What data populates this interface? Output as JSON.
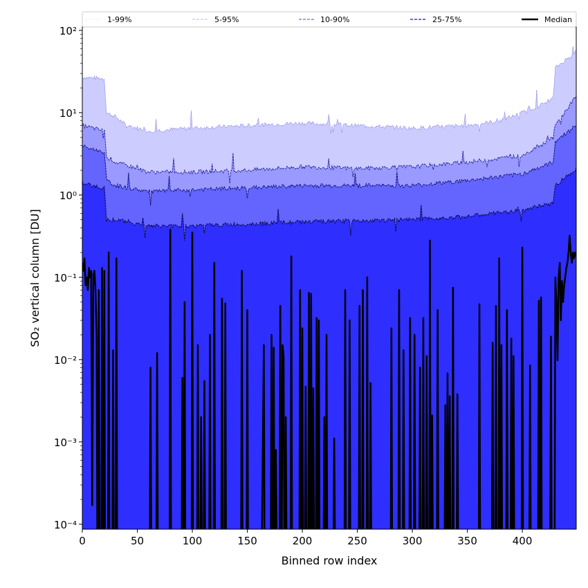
{
  "chart_data": {
    "type": "area",
    "xlabel": "Binned row index",
    "ylabel": "SO₂ vertical column [DU]",
    "xlim": [
      0,
      449
    ],
    "ylim": [
      8.7e-05,
      110
    ],
    "yscale": "log",
    "x_ticks": [
      0,
      50,
      100,
      150,
      200,
      250,
      300,
      350,
      400
    ],
    "y_ticks": [
      {
        "value": 0.0001,
        "label": "10⁻⁴"
      },
      {
        "value": 0.001,
        "label": "10⁻³"
      },
      {
        "value": 0.01,
        "label": "10⁻²"
      },
      {
        "value": 0.1,
        "label": "10⁻¹"
      },
      {
        "value": 1,
        "label": "10⁰"
      },
      {
        "value": 10,
        "label": "10¹"
      },
      {
        "value": 100,
        "label": "10²"
      }
    ],
    "legend_position": "top, spanning full width",
    "legend": [
      {
        "label": "1-99%",
        "color": "#ccccff",
        "style": "dotted"
      },
      {
        "label": "5-95%",
        "color": "#9999ff",
        "style": "dashed"
      },
      {
        "label": "10-90%",
        "color": "#6666ff",
        "style": "dashed"
      },
      {
        "label": "25-75%",
        "color": "#3333ff",
        "style": "dashed"
      },
      {
        "label": "Median",
        "color": "#000000",
        "style": "solid"
      }
    ],
    "fills": {
      "p99": "#ccccff",
      "p95": "#9999ff",
      "p90": "#6464ff",
      "p75": "#2e2eff"
    },
    "series": [
      {
        "name": "p99",
        "x": [
          0,
          20,
          22,
          30,
          40,
          50,
          60,
          100,
          150,
          200,
          250,
          300,
          350,
          380,
          400,
          420,
          428,
          430,
          449
        ],
        "values": [
          27,
          26,
          10,
          9,
          7,
          6.5,
          6,
          6.5,
          7,
          7.5,
          7,
          6.5,
          7,
          8,
          10,
          13,
          15,
          35,
          55
        ]
      },
      {
        "name": "p95",
        "x": [
          0,
          20,
          22,
          30,
          50,
          60,
          100,
          150,
          200,
          250,
          300,
          350,
          400,
          428,
          430,
          449
        ],
        "values": [
          7,
          6,
          3,
          2.5,
          2.1,
          1.9,
          1.9,
          2.0,
          2.2,
          2.1,
          2.2,
          2.5,
          3,
          5,
          7,
          16
        ]
      },
      {
        "name": "p90",
        "x": [
          0,
          20,
          22,
          30,
          60,
          100,
          200,
          300,
          350,
          400,
          428,
          430,
          449
        ],
        "values": [
          3.9,
          3.3,
          1.5,
          1.3,
          1.1,
          1.15,
          1.3,
          1.3,
          1.5,
          1.8,
          2.5,
          4.5,
          7
        ]
      },
      {
        "name": "p75",
        "x": [
          0,
          20,
          22,
          30,
          60,
          100,
          200,
          300,
          350,
          400,
          428,
          430,
          449
        ],
        "values": [
          1.4,
          1.2,
          0.5,
          0.5,
          0.42,
          0.42,
          0.47,
          0.5,
          0.55,
          0.65,
          0.8,
          1.3,
          2.1
        ]
      },
      {
        "name": "Median",
        "points": [
          [
            0,
            0.15
          ],
          [
            1,
            0.12
          ],
          [
            2,
            0.17
          ],
          [
            3,
            0.08
          ],
          [
            4,
            0.1
          ],
          [
            5,
            0.07
          ],
          [
            6,
            0.13
          ],
          [
            7,
            0.1
          ],
          [
            8,
            0.12
          ],
          [
            9,
            0.00017
          ],
          [
            10,
            0.11
          ],
          [
            11,
            0.12
          ],
          [
            12,
            0.07
          ],
          [
            13,
            0.02
          ],
          [
            15,
            0.07
          ],
          [
            18,
            0.13
          ],
          [
            20,
            0.12
          ],
          [
            24,
            0.2
          ],
          [
            28,
            0.013
          ],
          [
            31,
            0.17
          ],
          [
            62,
            0.008
          ],
          [
            68,
            0.012
          ],
          [
            80,
            0.38
          ],
          [
            91,
            0.006
          ],
          [
            93,
            0.05
          ],
          [
            100,
            0.35
          ],
          [
            105,
            0.015
          ],
          [
            108,
            0.002
          ],
          [
            111,
            0.0055
          ],
          [
            116,
            0.02
          ],
          [
            120,
            0.15
          ],
          [
            127,
            0.055
          ],
          [
            130,
            0.048
          ],
          [
            145,
            0.12
          ],
          [
            150,
            0.04
          ],
          [
            164,
            0.00065
          ],
          [
            165,
            0.015
          ],
          [
            172,
            0.02
          ],
          [
            174,
            0.014
          ],
          [
            176,
            0.0008
          ],
          [
            180,
            0.045
          ],
          [
            182,
            0.015
          ],
          [
            183,
            0.011
          ],
          [
            185,
            0.002
          ],
          [
            190,
            0.18
          ],
          [
            198,
            0.07
          ],
          [
            200,
            0.024
          ],
          [
            203,
            0.0047
          ],
          [
            206,
            0.065
          ],
          [
            208,
            0.063
          ],
          [
            210,
            0.0045
          ],
          [
            213,
            0.032
          ],
          [
            215,
            0.03
          ],
          [
            220,
            0.002
          ],
          [
            222,
            0.02
          ],
          [
            229,
            0.0011
          ],
          [
            239,
            0.07
          ],
          [
            243,
            0.03
          ],
          [
            252,
            0.045
          ],
          [
            255,
            0.07
          ],
          [
            259,
            0.1
          ],
          [
            262,
            0.0052
          ],
          [
            281,
            0.024
          ],
          [
            288,
            0.07
          ],
          [
            292,
            0.013
          ],
          [
            298,
            0.032
          ],
          [
            302,
            0.02
          ],
          [
            307,
            0.008
          ],
          [
            310,
            0.032
          ],
          [
            313,
            0.011
          ],
          [
            316,
            0.28
          ],
          [
            318,
            0.0021
          ],
          [
            323,
            0.04
          ],
          [
            330,
            0.0028
          ],
          [
            332,
            0.0068
          ],
          [
            334,
            0.0036
          ],
          [
            337,
            0.075
          ],
          [
            341,
            0.0038
          ],
          [
            361,
            0.047
          ],
          [
            373,
            0.016
          ],
          [
            376,
            0.045
          ],
          [
            379,
            0.17
          ],
          [
            381,
            0.015
          ],
          [
            386,
            0.04
          ],
          [
            390,
            0.018
          ],
          [
            392,
            0.011
          ],
          [
            400,
            0.23
          ],
          [
            407,
            0.0085
          ],
          [
            415,
            0.052
          ],
          [
            417,
            0.057
          ],
          [
            426,
            0.019
          ],
          [
            430,
            0.1
          ],
          [
            431,
            0.05
          ],
          [
            432,
            0.0098
          ],
          [
            433,
            0.1
          ],
          [
            434,
            0.15
          ],
          [
            435,
            0.03
          ],
          [
            436,
            0.09
          ],
          [
            437,
            0.05
          ],
          [
            438,
            0.08
          ],
          [
            439,
            0.1
          ],
          [
            440,
            0.13
          ],
          [
            441,
            0.15
          ],
          [
            442,
            0.2
          ],
          [
            443,
            0.32
          ],
          [
            444,
            0.2
          ],
          [
            445,
            0.15
          ],
          [
            446,
            0.2
          ],
          [
            447,
            0.17
          ],
          [
            448,
            0.2
          ],
          [
            449,
            0.18
          ]
        ]
      }
    ]
  }
}
